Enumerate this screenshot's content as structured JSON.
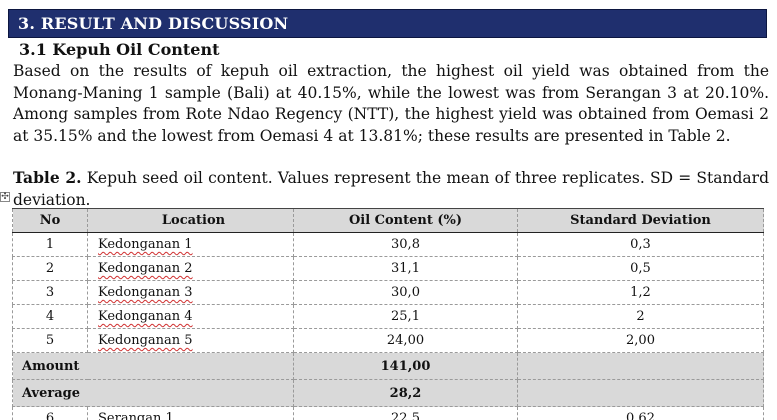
{
  "section": {
    "title": "3.   RESULT AND DISCUSSION"
  },
  "subsection": {
    "title": "3.1 Kepuh Oil Content"
  },
  "paragraph": "Based on the results of kepuh oil extraction, the highest oil yield was obtained from the Monang-Maning 1 sample (Bali) at 40.15%, while the lowest was from Serangan 3 at 20.10%. Among samples from Rote Ndao Regency (NTT), the highest yield was obtained from Oemasi 2 at 35.15% and the lowest from Oemasi 4 at 13.81%; these results are presented in Table 2.",
  "caption": {
    "label": "Table 2.",
    "text": " Kepuh seed oil content. Values represent the mean of three replicates. SD = Standard deviation."
  },
  "table": {
    "headers": [
      "No",
      "Location",
      "Oil Content (%)",
      "Standard Deviation"
    ],
    "rows": [
      [
        "1",
        "Kedonganan 1",
        "30,8",
        "0,3"
      ],
      [
        "2",
        "Kedonganan 2",
        "31,1",
        "0,5"
      ],
      [
        "3",
        "Kedonganan 3",
        "30,0",
        "1,2"
      ],
      [
        "4",
        "Kedonganan 4",
        "25,1",
        "2"
      ],
      [
        "5",
        "Kedonganan 5",
        "24,00",
        "2,00"
      ]
    ],
    "amount": {
      "label": "Amount",
      "value": "141,00",
      "sd": ""
    },
    "average": {
      "label": "Average",
      "value": "28,2",
      "sd": ""
    },
    "partial_row": [
      "6",
      "Serangan 1",
      "22,5",
      "0,62"
    ]
  },
  "icons": {
    "table_move_handle": "move-arrows-icon"
  }
}
